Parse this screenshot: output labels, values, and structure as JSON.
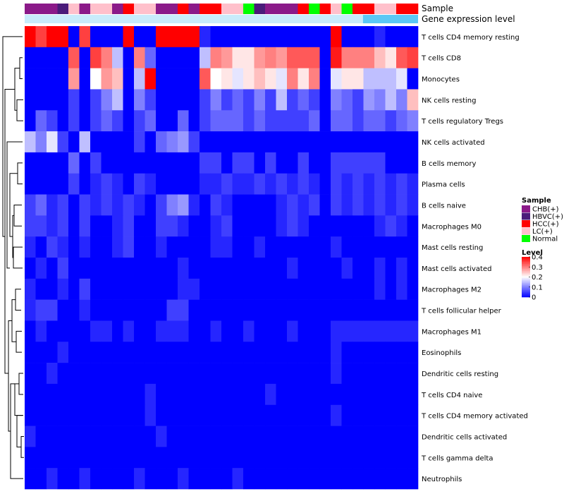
{
  "chart_data": {
    "type": "heatmap",
    "title": "",
    "annotation_rows": [
      "Sample",
      "Gene expression level"
    ],
    "row_labels": [
      "T cells CD4 memory resting",
      "T cells CD8",
      "Monocytes",
      "NK cells resting",
      "T cells regulatory  Tregs",
      "NK cells activated",
      "B cells memory",
      "Plasma cells",
      "B cells naive",
      "Macrophages M0",
      "Mast cells resting",
      "Mast cells activated",
      "Macrophages M2",
      "T cells follicular helper",
      "Macrophages M1",
      "Eosinophils",
      "Dendritic cells resting",
      "T cells CD4 naive",
      "T cells CD4 memory activated",
      "Dendritic cells activated",
      "T cells gamma delta",
      "Neutrophils"
    ],
    "sample_groups": [
      "CHB(+)",
      "CHB(+)",
      "CHB(+)",
      "HBVC(+)",
      "LC(+)",
      "CHB(+)",
      "LC(+)",
      "LC(+)",
      "CHB(+)",
      "HCC(+)",
      "LC(+)",
      "LC(+)",
      "CHB(+)",
      "CHB(+)",
      "HCC(+)",
      "CHB(+)",
      "HCC(+)",
      "HCC(+)",
      "LC(+)",
      "LC(+)",
      "Normal",
      "HBVC(+)",
      "CHB(+)",
      "CHB(+)",
      "CHB(+)",
      "HCC(+)",
      "Normal",
      "HCC(+)",
      "LC(+)",
      "Normal",
      "HCC(+)",
      "HCC(+)",
      "LC(+)",
      "LC(+)",
      "HCC(+)",
      "HCC(+)"
    ],
    "values": [
      [
        0.4,
        0.35,
        0.4,
        0.4,
        0.0,
        0.35,
        0.0,
        0.0,
        0.0,
        0.4,
        0.0,
        0.0,
        0.4,
        0.4,
        0.4,
        0.4,
        0.03,
        0.0,
        0.0,
        0.0,
        0.0,
        0.0,
        0.0,
        0.0,
        0.0,
        0.0,
        0.0,
        0.0,
        0.4,
        0.0,
        0.0,
        0.0,
        0.03,
        0.0,
        0.0,
        0.0
      ],
      [
        0.0,
        0.0,
        0.0,
        0.0,
        0.33,
        0.0,
        0.35,
        0.3,
        0.15,
        0.0,
        0.3,
        0.08,
        0.0,
        0.0,
        0.0,
        0.0,
        0.15,
        0.3,
        0.28,
        0.22,
        0.22,
        0.28,
        0.3,
        0.28,
        0.33,
        0.33,
        0.33,
        0.0,
        0.38,
        0.3,
        0.3,
        0.3,
        0.25,
        0.22,
        0.33,
        0.35
      ],
      [
        0.0,
        0.0,
        0.0,
        0.0,
        0.28,
        0.0,
        0.2,
        0.28,
        0.25,
        0.0,
        0.15,
        0.4,
        0.0,
        0.0,
        0.0,
        0.0,
        0.33,
        0.2,
        0.22,
        0.18,
        0.22,
        0.25,
        0.22,
        0.18,
        0.3,
        0.22,
        0.3,
        0.0,
        0.18,
        0.22,
        0.22,
        0.15,
        0.15,
        0.15,
        0.18,
        0.0
      ],
      [
        0.0,
        0.0,
        0.0,
        0.0,
        0.05,
        0.0,
        0.05,
        0.1,
        0.15,
        0.0,
        0.1,
        0.05,
        0.0,
        0.0,
        0.0,
        0.0,
        0.05,
        0.1,
        0.05,
        0.08,
        0.05,
        0.1,
        0.05,
        0.15,
        0.05,
        0.08,
        0.05,
        0.0,
        0.1,
        0.08,
        0.05,
        0.12,
        0.1,
        0.15,
        0.1,
        0.25
      ],
      [
        0.0,
        0.08,
        0.05,
        0.0,
        0.05,
        0.0,
        0.05,
        0.08,
        0.05,
        0.0,
        0.05,
        0.08,
        0.0,
        0.0,
        0.08,
        0.0,
        0.05,
        0.08,
        0.08,
        0.08,
        0.05,
        0.08,
        0.05,
        0.05,
        0.05,
        0.05,
        0.08,
        0.0,
        0.08,
        0.08,
        0.05,
        0.08,
        0.08,
        0.05,
        0.08,
        0.1
      ],
      [
        0.15,
        0.1,
        0.18,
        0.05,
        0.0,
        0.15,
        0.0,
        0.0,
        0.0,
        0.0,
        0.05,
        0.0,
        0.08,
        0.1,
        0.12,
        0.05,
        0.0,
        0.0,
        0.0,
        0.0,
        0.0,
        0.0,
        0.0,
        0.0,
        0.0,
        0.0,
        0.0,
        0.0,
        0.0,
        0.0,
        0.0,
        0.0,
        0.0,
        0.0,
        0.0,
        0.0
      ],
      [
        0.0,
        0.0,
        0.0,
        0.0,
        0.08,
        0.0,
        0.05,
        0.0,
        0.0,
        0.0,
        0.0,
        0.0,
        0.0,
        0.0,
        0.0,
        0.0,
        0.05,
        0.05,
        0.0,
        0.05,
        0.05,
        0.0,
        0.05,
        0.0,
        0.0,
        0.05,
        0.0,
        0.0,
        0.05,
        0.05,
        0.05,
        0.05,
        0.05,
        0.0,
        0.0,
        0.0
      ],
      [
        0.0,
        0.0,
        0.0,
        0.0,
        0.05,
        0.0,
        0.03,
        0.05,
        0.03,
        0.0,
        0.05,
        0.03,
        0.0,
        0.0,
        0.0,
        0.0,
        0.03,
        0.03,
        0.05,
        0.03,
        0.03,
        0.05,
        0.03,
        0.05,
        0.03,
        0.05,
        0.03,
        0.0,
        0.05,
        0.03,
        0.05,
        0.03,
        0.05,
        0.03,
        0.05,
        0.03
      ],
      [
        0.05,
        0.08,
        0.03,
        0.05,
        0.0,
        0.05,
        0.03,
        0.05,
        0.03,
        0.05,
        0.03,
        0.0,
        0.05,
        0.1,
        0.12,
        0.03,
        0.0,
        0.05,
        0.03,
        0.0,
        0.0,
        0.0,
        0.0,
        0.03,
        0.05,
        0.03,
        0.05,
        0.0,
        0.05,
        0.03,
        0.05,
        0.03,
        0.05,
        0.03,
        0.05,
        0.03
      ],
      [
        0.05,
        0.05,
        0.03,
        0.05,
        0.0,
        0.05,
        0.0,
        0.0,
        0.03,
        0.05,
        0.0,
        0.0,
        0.05,
        0.05,
        0.03,
        0.0,
        0.0,
        0.03,
        0.05,
        0.0,
        0.0,
        0.0,
        0.0,
        0.03,
        0.05,
        0.03,
        0.0,
        0.0,
        0.0,
        0.0,
        0.0,
        0.0,
        0.03,
        0.05,
        0.03,
        0.0
      ],
      [
        0.03,
        0.0,
        0.05,
        0.03,
        0.0,
        0.03,
        0.0,
        0.0,
        0.03,
        0.05,
        0.0,
        0.0,
        0.03,
        0.0,
        0.0,
        0.0,
        0.0,
        0.03,
        0.03,
        0.0,
        0.0,
        0.03,
        0.0,
        0.0,
        0.0,
        0.0,
        0.0,
        0.0,
        0.03,
        0.0,
        0.0,
        0.0,
        0.0,
        0.0,
        0.0,
        0.0
      ],
      [
        0.0,
        0.03,
        0.0,
        0.05,
        0.0,
        0.0,
        0.0,
        0.0,
        0.0,
        0.0,
        0.0,
        0.0,
        0.0,
        0.0,
        0.03,
        0.0,
        0.0,
        0.0,
        0.0,
        0.0,
        0.0,
        0.0,
        0.0,
        0.0,
        0.03,
        0.0,
        0.0,
        0.0,
        0.0,
        0.03,
        0.0,
        0.0,
        0.03,
        0.0,
        0.03,
        0.0
      ],
      [
        0.03,
        0.0,
        0.0,
        0.03,
        0.0,
        0.05,
        0.0,
        0.0,
        0.0,
        0.0,
        0.0,
        0.0,
        0.0,
        0.0,
        0.03,
        0.03,
        0.0,
        0.0,
        0.0,
        0.0,
        0.0,
        0.0,
        0.0,
        0.0,
        0.0,
        0.0,
        0.0,
        0.0,
        0.0,
        0.0,
        0.0,
        0.0,
        0.03,
        0.0,
        0.03,
        0.0
      ],
      [
        0.03,
        0.05,
        0.05,
        0.0,
        0.0,
        0.03,
        0.0,
        0.0,
        0.0,
        0.0,
        0.0,
        0.0,
        0.0,
        0.05,
        0.05,
        0.0,
        0.0,
        0.0,
        0.0,
        0.0,
        0.0,
        0.0,
        0.0,
        0.0,
        0.0,
        0.0,
        0.0,
        0.0,
        0.0,
        0.0,
        0.0,
        0.0,
        0.0,
        0.0,
        0.0,
        0.0
      ],
      [
        0.0,
        0.03,
        0.0,
        0.0,
        0.0,
        0.0,
        0.03,
        0.03,
        0.0,
        0.03,
        0.0,
        0.0,
        0.03,
        0.03,
        0.03,
        0.0,
        0.0,
        0.03,
        0.0,
        0.0,
        0.03,
        0.0,
        0.0,
        0.0,
        0.03,
        0.0,
        0.0,
        0.0,
        0.03,
        0.03,
        0.03,
        0.03,
        0.03,
        0.03,
        0.03,
        0.03
      ],
      [
        0.0,
        0.0,
        0.0,
        0.03,
        0.0,
        0.0,
        0.0,
        0.0,
        0.0,
        0.0,
        0.0,
        0.0,
        0.0,
        0.0,
        0.0,
        0.0,
        0.0,
        0.0,
        0.0,
        0.0,
        0.0,
        0.0,
        0.0,
        0.0,
        0.0,
        0.0,
        0.0,
        0.0,
        0.03,
        0.0,
        0.0,
        0.0,
        0.0,
        0.0,
        0.0,
        0.0
      ],
      [
        0.0,
        0.0,
        0.03,
        0.0,
        0.0,
        0.0,
        0.0,
        0.0,
        0.0,
        0.0,
        0.0,
        0.0,
        0.0,
        0.0,
        0.0,
        0.0,
        0.0,
        0.0,
        0.0,
        0.0,
        0.0,
        0.0,
        0.0,
        0.0,
        0.0,
        0.0,
        0.0,
        0.0,
        0.03,
        0.0,
        0.0,
        0.0,
        0.0,
        0.0,
        0.0,
        0.0
      ],
      [
        0.0,
        0.0,
        0.0,
        0.0,
        0.0,
        0.0,
        0.0,
        0.0,
        0.0,
        0.0,
        0.0,
        0.03,
        0.0,
        0.0,
        0.0,
        0.0,
        0.0,
        0.0,
        0.0,
        0.0,
        0.0,
        0.0,
        0.03,
        0.0,
        0.0,
        0.0,
        0.0,
        0.0,
        0.0,
        0.0,
        0.0,
        0.0,
        0.0,
        0.0,
        0.0,
        0.0
      ],
      [
        0.0,
        0.0,
        0.0,
        0.0,
        0.0,
        0.0,
        0.0,
        0.0,
        0.0,
        0.0,
        0.0,
        0.03,
        0.0,
        0.0,
        0.0,
        0.0,
        0.0,
        0.0,
        0.0,
        0.0,
        0.0,
        0.0,
        0.0,
        0.0,
        0.0,
        0.0,
        0.0,
        0.0,
        0.03,
        0.0,
        0.0,
        0.0,
        0.0,
        0.0,
        0.0,
        0.0
      ],
      [
        0.03,
        0.0,
        0.0,
        0.0,
        0.0,
        0.0,
        0.0,
        0.0,
        0.0,
        0.0,
        0.0,
        0.0,
        0.03,
        0.0,
        0.0,
        0.0,
        0.0,
        0.0,
        0.0,
        0.0,
        0.0,
        0.0,
        0.0,
        0.0,
        0.0,
        0.0,
        0.0,
        0.0,
        0.0,
        0.0,
        0.0,
        0.0,
        0.0,
        0.0,
        0.0,
        0.0
      ],
      [
        0.0,
        0.0,
        0.0,
        0.0,
        0.0,
        0.0,
        0.0,
        0.0,
        0.0,
        0.0,
        0.0,
        0.0,
        0.0,
        0.0,
        0.0,
        0.0,
        0.0,
        0.0,
        0.0,
        0.0,
        0.0,
        0.0,
        0.0,
        0.0,
        0.0,
        0.0,
        0.0,
        0.0,
        0.0,
        0.0,
        0.0,
        0.0,
        0.0,
        0.0,
        0.0,
        0.0
      ],
      [
        0.0,
        0.0,
        0.03,
        0.0,
        0.0,
        0.03,
        0.0,
        0.0,
        0.0,
        0.0,
        0.03,
        0.0,
        0.0,
        0.0,
        0.03,
        0.0,
        0.0,
        0.0,
        0.0,
        0.03,
        0.0,
        0.0,
        0.0,
        0.0,
        0.0,
        0.0,
        0.0,
        0.0,
        0.0,
        0.0,
        0.0,
        0.0,
        0.0,
        0.0,
        0.0,
        0.0
      ]
    ],
    "legend": {
      "sample_title": "Sample",
      "sample_entries": [
        {
          "label": "CHB(+)",
          "color": "#8B1A89"
        },
        {
          "label": "HBVC(+)",
          "color": "#4B1C7A"
        },
        {
          "label": "HCC(+)",
          "color": "#FF0000"
        },
        {
          "label": "LC(+)",
          "color": "#FFC0CB"
        },
        {
          "label": "Normal",
          "color": "#00FF00"
        }
      ],
      "level_title": "Level",
      "level_ticks": [
        0.4,
        0.3,
        0.2,
        0.1,
        0
      ],
      "level_range": [
        0,
        0.4
      ]
    },
    "colors": {
      "low": "#0000FF",
      "mid": "#FFFFFF",
      "high": "#FF0000",
      "gene_expression_bar": "#5BC8F5",
      "gene_expression_bar_light": "#C8ECFB"
    }
  }
}
